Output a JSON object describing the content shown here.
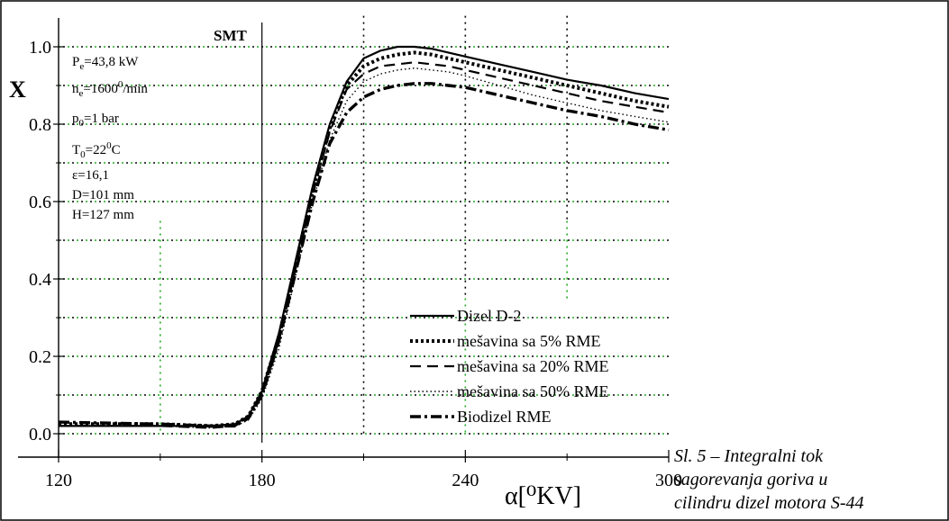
{
  "chart_data": {
    "type": "line",
    "xlabel": "α[⁰KV]",
    "ylabel": "X",
    "xlim": [
      120,
      300
    ],
    "ylim": [
      0.0,
      1.0
    ],
    "xticks": [
      120,
      180,
      240,
      300
    ],
    "yticks": [
      0.0,
      0.2,
      0.4,
      0.6,
      0.8,
      1.0
    ],
    "xtick_labels": [
      "120",
      "180",
      "240",
      "300"
    ],
    "ytick_labels": [
      "0.0",
      "0.2",
      "0.4",
      "0.6",
      "0.8",
      "1.0"
    ],
    "grid": true,
    "smt_marker": {
      "label": "SMT",
      "x": 180
    },
    "parameters": [
      {
        "main": "P",
        "sub": "e",
        "rest": "=43,8 kW"
      },
      {
        "main": "n",
        "sub": "e",
        "rest": "=1600",
        "sup": "0",
        "tail": "/min"
      },
      {
        "main": "p",
        "sub": "0",
        "rest": "=1 bar"
      },
      {
        "main": "T",
        "sub": "0",
        "rest": "=22",
        "sup": "0",
        "tail": "C"
      },
      {
        "main": "ε=16,1"
      },
      {
        "main": "D=101 mm"
      },
      {
        "main": "H=127 mm"
      }
    ],
    "legend_position": "lower-right",
    "series": [
      {
        "name": "Dizel D-2",
        "style": "solid",
        "x": [
          120,
          150,
          165,
          172,
          176,
          180,
          185,
          190,
          195,
          200,
          205,
          210,
          215,
          220,
          225,
          230,
          235,
          240,
          250,
          260,
          270,
          280,
          290,
          300
        ],
        "y": [
          0.02,
          0.02,
          0.02,
          0.025,
          0.045,
          0.11,
          0.26,
          0.45,
          0.64,
          0.8,
          0.91,
          0.97,
          0.99,
          1.0,
          1.0,
          0.995,
          0.985,
          0.975,
          0.955,
          0.935,
          0.915,
          0.9,
          0.88,
          0.865
        ]
      },
      {
        "name": "mešavina sa 5% RME",
        "style": "dotted",
        "x": [
          120,
          150,
          165,
          172,
          176,
          180,
          185,
          190,
          195,
          200,
          205,
          210,
          215,
          220,
          225,
          230,
          235,
          240,
          250,
          260,
          270,
          280,
          290,
          300
        ],
        "y": [
          0.025,
          0.025,
          0.02,
          0.025,
          0.045,
          0.11,
          0.25,
          0.44,
          0.63,
          0.79,
          0.9,
          0.95,
          0.97,
          0.98,
          0.985,
          0.98,
          0.97,
          0.96,
          0.94,
          0.92,
          0.9,
          0.88,
          0.86,
          0.845
        ]
      },
      {
        "name": "mešavina sa 20% RME",
        "style": "dashed",
        "x": [
          120,
          150,
          165,
          172,
          176,
          180,
          185,
          190,
          195,
          200,
          205,
          210,
          215,
          220,
          225,
          230,
          235,
          240,
          250,
          260,
          270,
          280,
          290,
          300
        ],
        "y": [
          0.02,
          0.02,
          0.015,
          0.02,
          0.04,
          0.1,
          0.24,
          0.43,
          0.62,
          0.78,
          0.89,
          0.93,
          0.95,
          0.955,
          0.96,
          0.955,
          0.95,
          0.94,
          0.92,
          0.9,
          0.88,
          0.86,
          0.845,
          0.83
        ]
      },
      {
        "name": "mešavina sa 50% RME",
        "style": "fine-dotted",
        "x": [
          120,
          150,
          165,
          172,
          176,
          180,
          185,
          190,
          195,
          200,
          205,
          210,
          215,
          220,
          225,
          230,
          235,
          240,
          250,
          260,
          270,
          280,
          290,
          300
        ],
        "y": [
          0.02,
          0.02,
          0.015,
          0.02,
          0.035,
          0.09,
          0.22,
          0.41,
          0.6,
          0.76,
          0.86,
          0.91,
          0.93,
          0.94,
          0.945,
          0.94,
          0.935,
          0.925,
          0.9,
          0.875,
          0.855,
          0.835,
          0.82,
          0.805
        ]
      },
      {
        "name": "Biodizel RME",
        "style": "dash-dot",
        "x": [
          120,
          150,
          165,
          172,
          176,
          180,
          185,
          190,
          195,
          200,
          205,
          210,
          215,
          220,
          225,
          230,
          235,
          240,
          250,
          260,
          270,
          280,
          290,
          300
        ],
        "y": [
          0.03,
          0.025,
          0.02,
          0.02,
          0.04,
          0.1,
          0.24,
          0.42,
          0.6,
          0.75,
          0.83,
          0.87,
          0.89,
          0.9,
          0.905,
          0.905,
          0.9,
          0.895,
          0.875,
          0.855,
          0.835,
          0.82,
          0.8,
          0.785
        ]
      }
    ],
    "colors": {
      "axis": "#000000",
      "grid_black": "#000000",
      "grid_green": "#22aa22"
    }
  },
  "caption": {
    "lines": [
      "Sl. 5 – Integralni tok",
      "sagorevanja goriva u",
      "cilindru dizel motora S-44"
    ]
  }
}
